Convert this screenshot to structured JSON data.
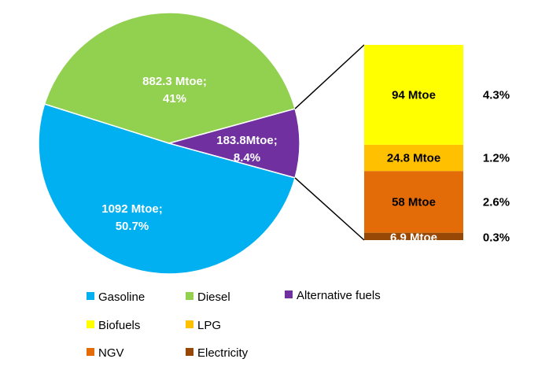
{
  "chart_data": {
    "type": "pie",
    "main_pie": {
      "slices": [
        {
          "name": "Gasoline",
          "value": 1092,
          "label": "1092 Mtoe;",
          "pct_label": "50.7%",
          "color": "#00b0f0"
        },
        {
          "name": "Diesel",
          "value": 882.3,
          "label": "882.3 Mtoe;",
          "pct_label": "41%",
          "color": "#92d050"
        },
        {
          "name": "Alternative fuels",
          "value": 183.8,
          "label": "183.8Mtoe;",
          "pct_label": "8.4%",
          "color": "#7030a0"
        }
      ]
    },
    "breakdown_bar": {
      "segments": [
        {
          "name": "Biofuels",
          "value": 94,
          "label": "94 Mtoe",
          "pct_label": "4.3%",
          "color": "#ffff00",
          "text_color": "#000000"
        },
        {
          "name": "LPG",
          "value": 24.8,
          "label": "24.8 Mtoe",
          "pct_label": "1.2%",
          "color": "#ffc000",
          "text_color": "#000000"
        },
        {
          "name": "NGV",
          "value": 58,
          "label": "58 Mtoe",
          "pct_label": "2.6%",
          "color": "#e36c09",
          "text_color": "#000000"
        },
        {
          "name": "Electricity",
          "value": 6.9,
          "label": "6.9 Mtoe",
          "pct_label": "0.3%",
          "color": "#974806",
          "text_color": "#ffffff"
        }
      ]
    },
    "legend": [
      {
        "name": "Gasoline",
        "color": "#00b0f0"
      },
      {
        "name": "Diesel",
        "color": "#92d050"
      },
      {
        "name": "Alternative fuels",
        "color": "#7030a0"
      },
      {
        "name": "Biofuels",
        "color": "#ffff00"
      },
      {
        "name": "LPG",
        "color": "#ffc000"
      },
      {
        "name": "NGV",
        "color": "#e36c09"
      },
      {
        "name": "Electricity",
        "color": "#974806"
      }
    ],
    "legend_placement": "bottom",
    "title": ""
  }
}
